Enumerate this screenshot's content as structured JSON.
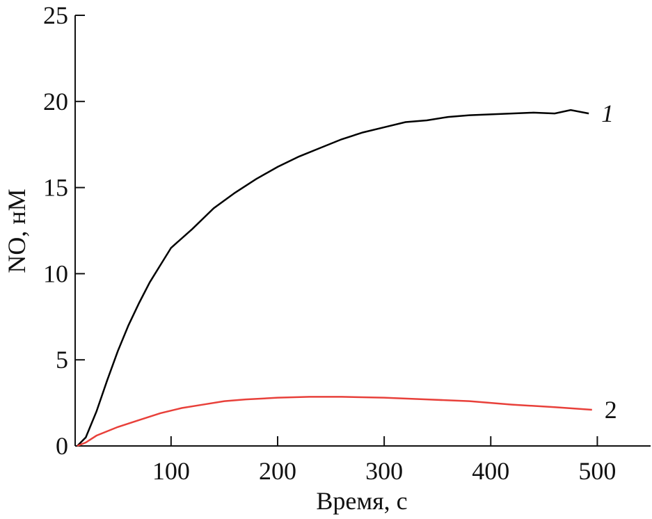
{
  "chart_data": {
    "type": "line",
    "x_label": "Время, с",
    "y_label": "NO, нМ",
    "xlim": [
      10,
      550
    ],
    "ylim": [
      0,
      25
    ],
    "xticks": [
      100,
      200,
      300,
      400,
      500
    ],
    "yticks": [
      0,
      5,
      10,
      15,
      20,
      25
    ],
    "grid": false,
    "series": [
      {
        "name": "1",
        "color": "#000000",
        "x": [
          12,
          20,
          30,
          40,
          50,
          60,
          70,
          80,
          90,
          100,
          120,
          140,
          160,
          180,
          200,
          220,
          240,
          260,
          280,
          300,
          320,
          340,
          360,
          380,
          400,
          420,
          440,
          460,
          475,
          492
        ],
        "values": [
          0,
          0.5,
          2,
          3.8,
          5.5,
          7,
          8.3,
          9.5,
          10.5,
          11.5,
          12.6,
          13.8,
          14.7,
          15.5,
          16.2,
          16.8,
          17.3,
          17.8,
          18.2,
          18.5,
          18.8,
          18.9,
          19.1,
          19.2,
          19.25,
          19.3,
          19.35,
          19.3,
          19.5,
          19.3
        ]
      },
      {
        "name": "2",
        "color": "#e8403a",
        "x": [
          12,
          20,
          30,
          50,
          70,
          90,
          110,
          130,
          150,
          170,
          200,
          230,
          260,
          300,
          340,
          380,
          420,
          460,
          495
        ],
        "values": [
          0,
          0.2,
          0.6,
          1.1,
          1.5,
          1.9,
          2.2,
          2.4,
          2.6,
          2.7,
          2.8,
          2.85,
          2.85,
          2.8,
          2.7,
          2.6,
          2.4,
          2.25,
          2.1
        ]
      }
    ]
  }
}
